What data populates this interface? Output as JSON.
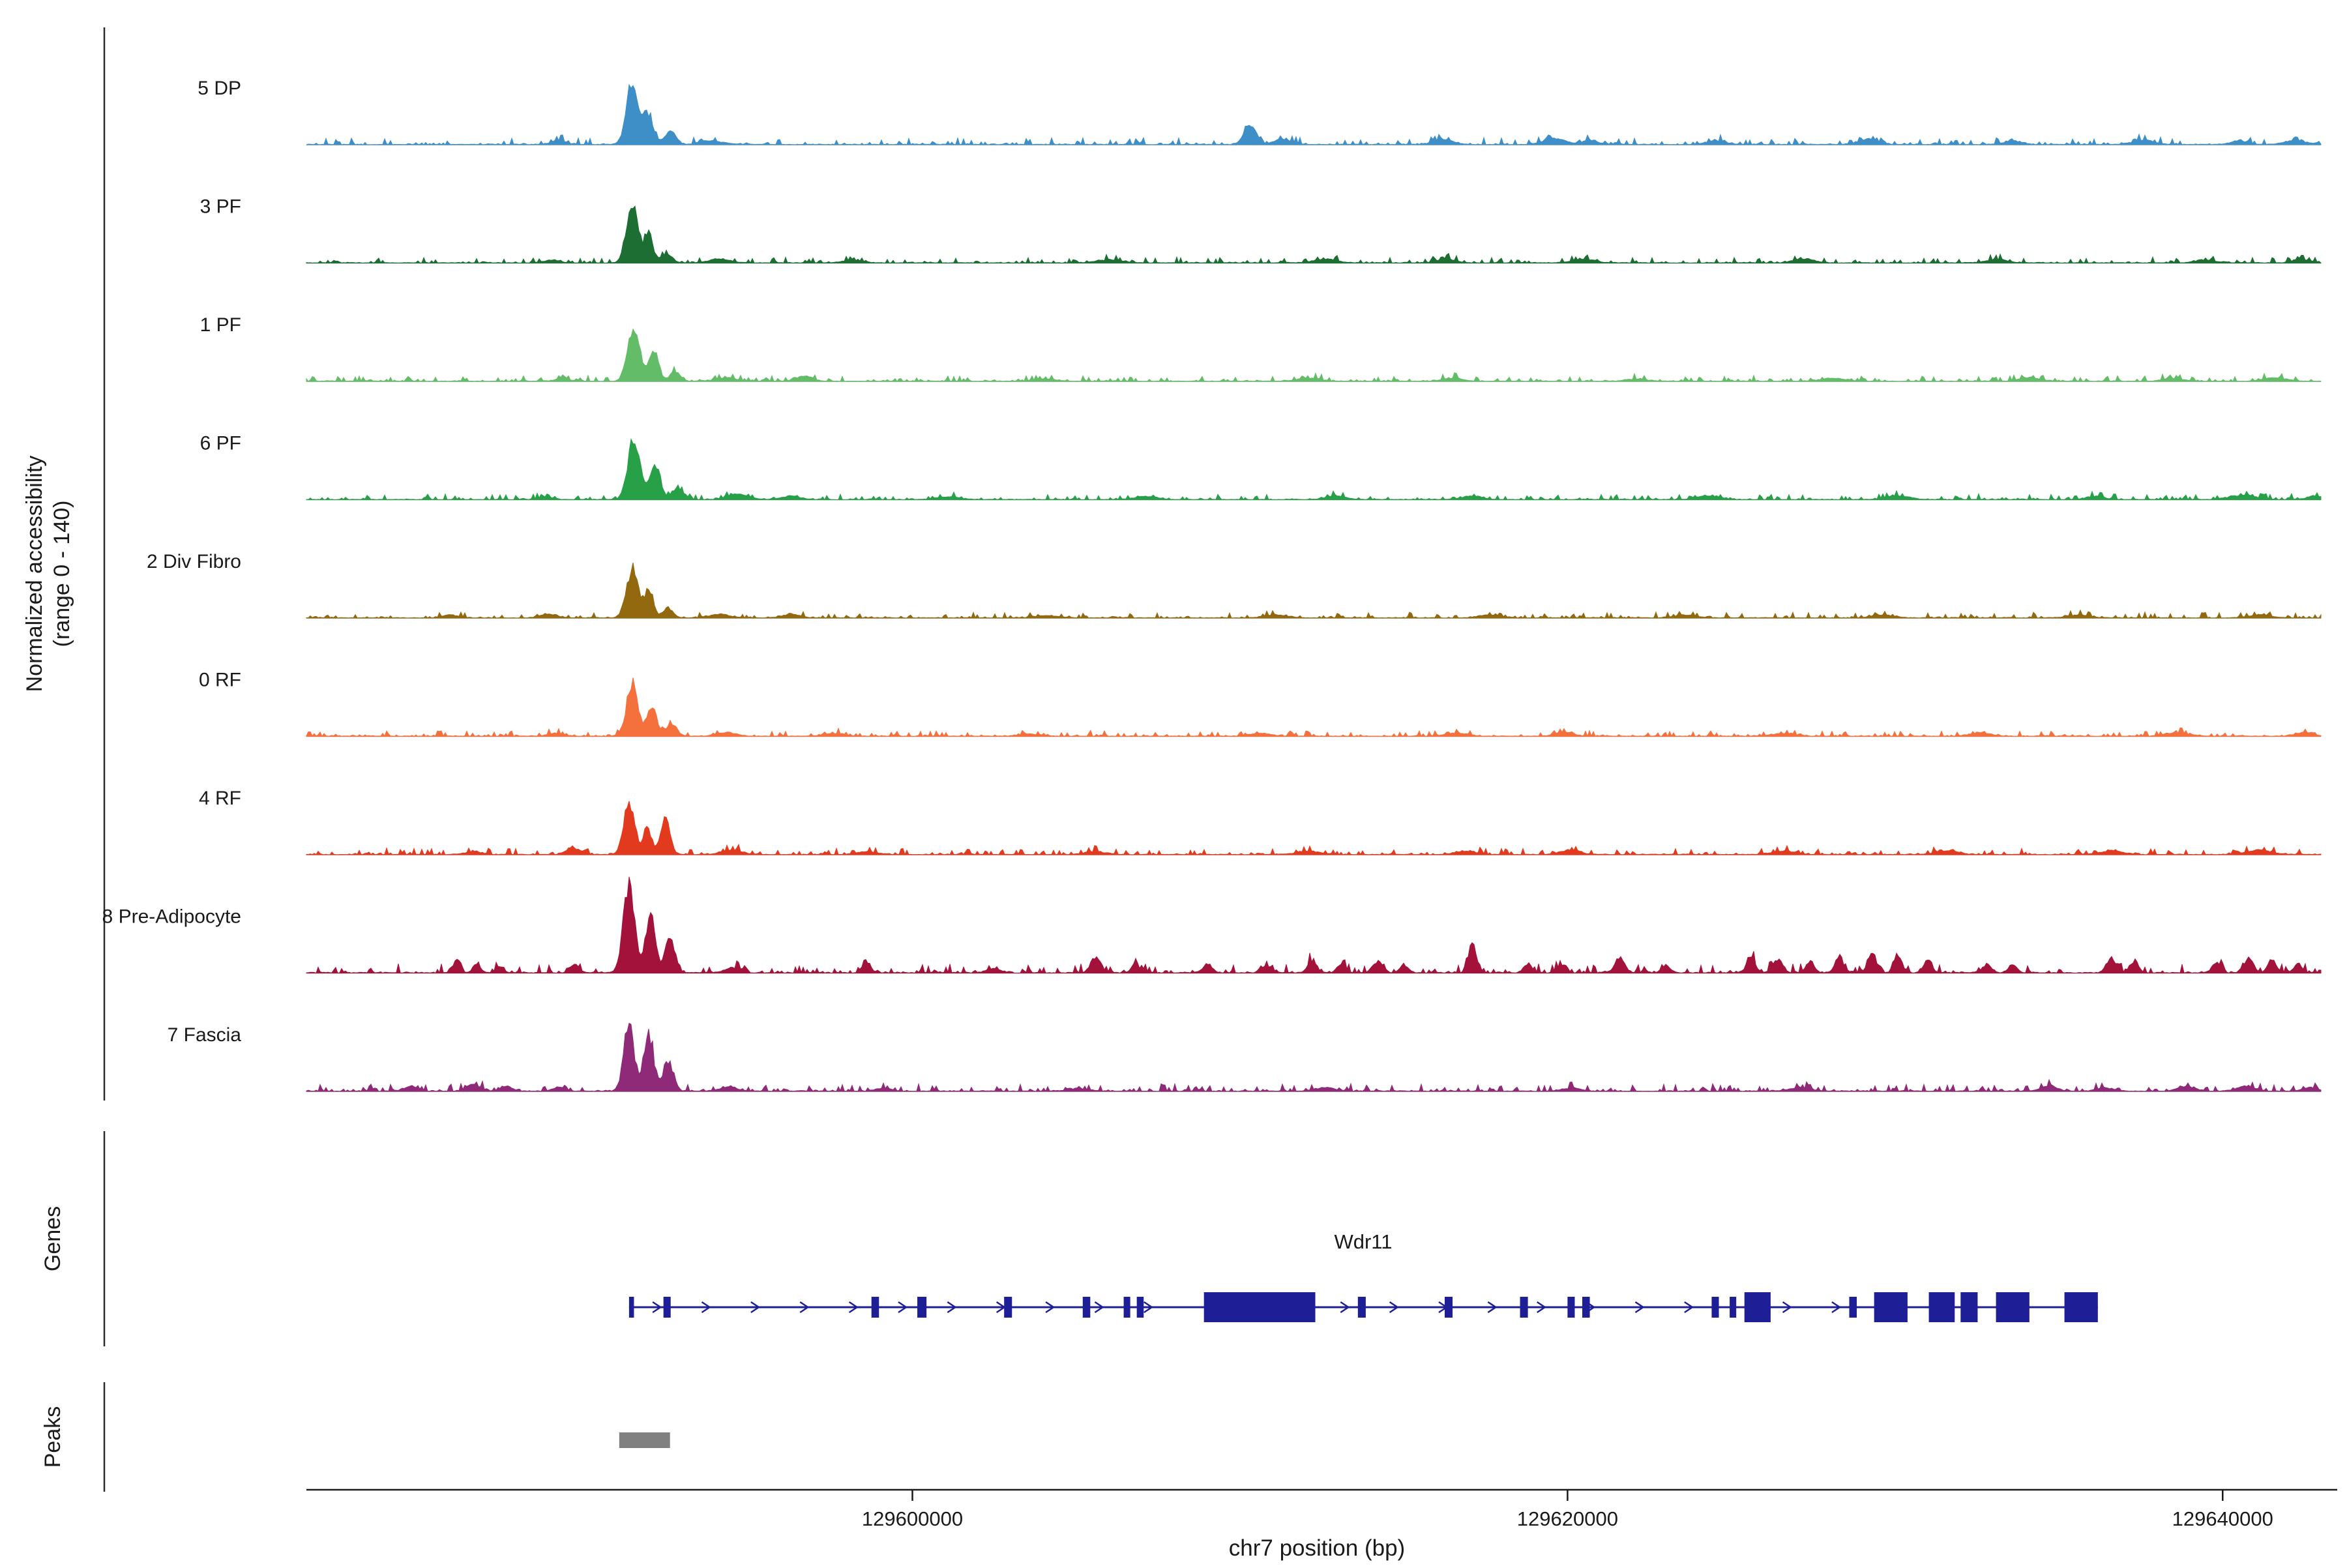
{
  "figure": {
    "genes_section_label": "Genes",
    "peaks_section_label": "Peaks"
  },
  "chart_data": {
    "type": "area",
    "description": "Normalized chromatin accessibility coverage tracks with gene model and peak annotation",
    "ylabel_line1": "Normalized accessibility",
    "ylabel_line2": "(range 0 - 140)",
    "xlabel": "chr7 position (bp)",
    "ylim": [
      0,
      140
    ],
    "x_range_bp": [
      129581500,
      129643000
    ],
    "x_ticks": [
      {
        "bp": 129600000,
        "label": "129600000"
      },
      {
        "bp": 129620000,
        "label": "129620000"
      },
      {
        "bp": 129640000,
        "label": "129640000"
      }
    ],
    "gene_color": "#1E1E96",
    "peak_color": "#808080",
    "tracks": [
      {
        "label": "5 DP",
        "color": "#3E8FC7",
        "noise": 3,
        "bumps": [
          [
            129591450,
            430,
            85
          ],
          [
            129591950,
            340,
            42
          ],
          [
            129592600,
            400,
            18
          ],
          [
            129589200,
            500,
            5
          ],
          [
            129593900,
            800,
            5
          ],
          [
            129610300,
            420,
            28
          ],
          [
            129611300,
            600,
            7
          ],
          [
            129616200,
            700,
            7
          ],
          [
            129619600,
            800,
            8
          ],
          [
            129620700,
            500,
            6
          ],
          [
            129624500,
            700,
            5
          ],
          [
            129629200,
            700,
            7
          ],
          [
            129633600,
            600,
            5
          ],
          [
            129637600,
            800,
            6
          ],
          [
            129640500,
            600,
            5
          ],
          [
            129642200,
            700,
            6
          ]
        ]
      },
      {
        "label": "3 PF",
        "color": "#1C6E33",
        "noise": 2.5,
        "bumps": [
          [
            129591450,
            420,
            76
          ],
          [
            129591950,
            320,
            38
          ],
          [
            129592500,
            360,
            14
          ],
          [
            129589000,
            600,
            4
          ],
          [
            129594100,
            800,
            5
          ],
          [
            129598200,
            700,
            4
          ],
          [
            129606000,
            900,
            4
          ],
          [
            129612600,
            800,
            5
          ],
          [
            129616300,
            600,
            6
          ],
          [
            129620500,
            800,
            5
          ],
          [
            129627200,
            700,
            6
          ],
          [
            129633100,
            800,
            4
          ],
          [
            129639500,
            700,
            4
          ],
          [
            129642400,
            600,
            5
          ]
        ]
      },
      {
        "label": "1 PF",
        "color": "#63BD68",
        "noise": 2.5,
        "bumps": [
          [
            129591500,
            430,
            72
          ],
          [
            129592100,
            350,
            44
          ],
          [
            129592750,
            350,
            14
          ],
          [
            129589300,
            500,
            4
          ],
          [
            129594300,
            700,
            5
          ],
          [
            129596700,
            600,
            7
          ],
          [
            129604000,
            800,
            3
          ],
          [
            129612100,
            800,
            4
          ],
          [
            129616500,
            700,
            4
          ],
          [
            129622100,
            800,
            3
          ],
          [
            129628100,
            800,
            4
          ],
          [
            129634100,
            700,
            5
          ],
          [
            129638500,
            700,
            4
          ],
          [
            129641600,
            800,
            5
          ]
        ]
      },
      {
        "label": "6 PF",
        "color": "#27A047",
        "noise": 2.5,
        "bumps": [
          [
            129591500,
            430,
            84
          ],
          [
            129592150,
            380,
            46
          ],
          [
            129592850,
            400,
            16
          ],
          [
            129588800,
            500,
            4
          ],
          [
            129594700,
            700,
            8
          ],
          [
            129596300,
            600,
            5
          ],
          [
            129601100,
            800,
            4
          ],
          [
            129607100,
            800,
            4
          ],
          [
            129612900,
            700,
            5
          ],
          [
            129617100,
            700,
            5
          ],
          [
            129624300,
            800,
            5
          ],
          [
            129630100,
            800,
            5
          ],
          [
            129636100,
            700,
            4
          ],
          [
            129640600,
            900,
            6
          ],
          [
            129642800,
            500,
            5
          ]
        ]
      },
      {
        "label": "2 Div Fibro",
        "color": "#92690F",
        "noise": 2.5,
        "bumps": [
          [
            129591450,
            430,
            66
          ],
          [
            129591950,
            330,
            36
          ],
          [
            129592550,
            360,
            13
          ],
          [
            129585900,
            600,
            4
          ],
          [
            129588900,
            600,
            5
          ],
          [
            129594100,
            700,
            5
          ],
          [
            129596300,
            600,
            5
          ],
          [
            129604100,
            900,
            3
          ],
          [
            129611100,
            800,
            4
          ],
          [
            129617600,
            800,
            4
          ],
          [
            129623600,
            800,
            4
          ],
          [
            129629600,
            800,
            4
          ],
          [
            129635600,
            800,
            4
          ],
          [
            129641100,
            800,
            4
          ]
        ]
      },
      {
        "label": "0 RF",
        "color": "#F4703D",
        "noise": 2.5,
        "bumps": [
          [
            129591450,
            420,
            72
          ],
          [
            129592050,
            340,
            42
          ],
          [
            129592650,
            380,
            16
          ],
          [
            129589100,
            600,
            4
          ],
          [
            129594300,
            700,
            5
          ],
          [
            129597600,
            700,
            4
          ],
          [
            129603600,
            800,
            3
          ],
          [
            129610600,
            800,
            4
          ],
          [
            129616600,
            800,
            4
          ],
          [
            129619900,
            600,
            6
          ],
          [
            129626600,
            800,
            4
          ],
          [
            129632600,
            800,
            4
          ],
          [
            129638600,
            800,
            5
          ],
          [
            129642500,
            600,
            5
          ]
        ]
      },
      {
        "label": "4 RF",
        "color": "#E23A1F",
        "noise": 2.8,
        "bumps": [
          [
            129591350,
            380,
            72
          ],
          [
            129591900,
            300,
            34
          ],
          [
            129592450,
            330,
            54
          ],
          [
            129589650,
            500,
            9
          ],
          [
            129586600,
            600,
            4
          ],
          [
            129594500,
            700,
            6
          ],
          [
            129598600,
            700,
            4
          ],
          [
            129605600,
            800,
            4
          ],
          [
            129612100,
            800,
            5
          ],
          [
            129616900,
            700,
            5
          ],
          [
            129620100,
            700,
            6
          ],
          [
            129626600,
            800,
            5
          ],
          [
            129631600,
            800,
            5
          ],
          [
            129636600,
            800,
            5
          ],
          [
            129641100,
            900,
            6
          ]
        ]
      },
      {
        "label": "8 Pre-Adipocyte",
        "color": "#A3123A",
        "noise": 4,
        "bumps": [
          [
            129591350,
            400,
            128
          ],
          [
            129592000,
            350,
            82
          ],
          [
            129592600,
            360,
            46
          ],
          [
            129586100,
            250,
            17
          ],
          [
            129586700,
            250,
            13
          ],
          [
            129587400,
            250,
            9
          ],
          [
            129589700,
            300,
            11
          ],
          [
            129594500,
            500,
            7
          ],
          [
            129598600,
            300,
            13
          ],
          [
            129602500,
            500,
            6
          ],
          [
            129605600,
            350,
            22
          ],
          [
            129606800,
            300,
            10
          ],
          [
            129609000,
            350,
            11
          ],
          [
            129610800,
            350,
            9
          ],
          [
            129612200,
            300,
            18
          ],
          [
            129613100,
            300,
            12
          ],
          [
            129614200,
            350,
            15
          ],
          [
            129615000,
            300,
            10
          ],
          [
            129617100,
            300,
            38
          ],
          [
            129618800,
            300,
            12
          ],
          [
            129619800,
            300,
            10
          ],
          [
            129621600,
            350,
            20
          ],
          [
            129623000,
            300,
            10
          ],
          [
            129625600,
            300,
            22
          ],
          [
            129626400,
            300,
            18
          ],
          [
            129627400,
            300,
            16
          ],
          [
            129628300,
            300,
            22
          ],
          [
            129629300,
            300,
            26
          ],
          [
            129630100,
            300,
            20
          ],
          [
            129631000,
            300,
            16
          ],
          [
            129632800,
            300,
            12
          ],
          [
            129633600,
            300,
            10
          ],
          [
            129636600,
            350,
            20
          ],
          [
            129637300,
            300,
            16
          ],
          [
            129639800,
            300,
            14
          ],
          [
            129640800,
            300,
            22
          ],
          [
            129641500,
            300,
            18
          ],
          [
            129642300,
            300,
            12
          ]
        ]
      },
      {
        "label": "7 Fascia",
        "color": "#8E2A77",
        "noise": 3.2,
        "bumps": [
          [
            129591350,
            380,
            90
          ],
          [
            129591950,
            350,
            78
          ],
          [
            129592550,
            360,
            42
          ],
          [
            129584700,
            500,
            6
          ],
          [
            129586600,
            500,
            9
          ],
          [
            129587600,
            400,
            7
          ],
          [
            129589200,
            400,
            6
          ],
          [
            129594400,
            600,
            6
          ],
          [
            129599100,
            600,
            4
          ],
          [
            129605100,
            800,
            3
          ],
          [
            129612600,
            700,
            5
          ],
          [
            129620100,
            700,
            4
          ],
          [
            129627100,
            800,
            4
          ],
          [
            129634700,
            600,
            7
          ],
          [
            129636400,
            600,
            5
          ],
          [
            129638900,
            600,
            7
          ],
          [
            129640700,
            700,
            6
          ],
          [
            129642700,
            500,
            5
          ]
        ]
      }
    ],
    "gene": {
      "name": "Wdr11",
      "start": 129591350,
      "end": 129636190,
      "strand": "+",
      "exons": [
        [
          129591350,
          129591500
        ],
        [
          129592400,
          129592620
        ],
        [
          129598750,
          129598980
        ],
        [
          129600150,
          129600430
        ],
        [
          129602800,
          129603040
        ],
        [
          129605200,
          129605430
        ],
        [
          129606450,
          129606650
        ],
        [
          129606850,
          129607060
        ],
        [
          129608900,
          129612300
        ],
        [
          129613600,
          129613840
        ],
        [
          129616250,
          129616490
        ],
        [
          129618550,
          129618790
        ],
        [
          129620000,
          129620220
        ],
        [
          129620450,
          129620680
        ],
        [
          129624400,
          129624620
        ],
        [
          129624950,
          129625150
        ],
        [
          129625400,
          129626200
        ],
        [
          129628600,
          129628830
        ],
        [
          129629360,
          129630380
        ],
        [
          129631030,
          129631820
        ],
        [
          129632000,
          129632520
        ],
        [
          129633080,
          129634100
        ],
        [
          129635170,
          129636190
        ]
      ]
    },
    "peaks_intervals": [
      [
        129591050,
        129592600
      ]
    ]
  }
}
